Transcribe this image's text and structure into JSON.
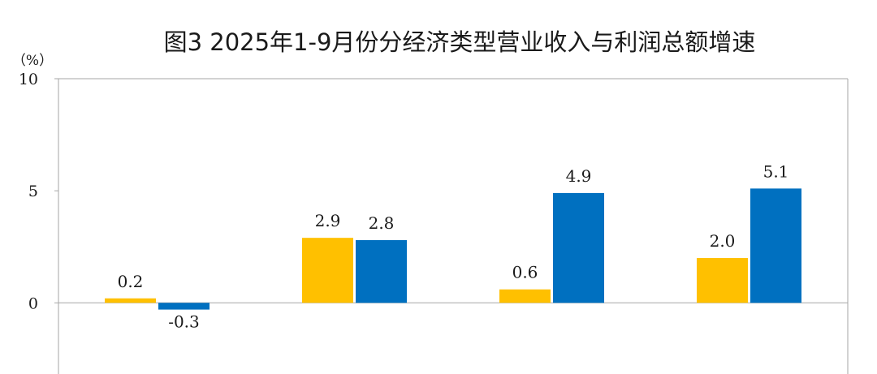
{
  "chart_data": {
    "type": "bar",
    "title": "图3 2025年1-9月份分经济类型营业收入与利润总额增速",
    "ylabel": "（%）",
    "xlabel": "",
    "ylim": [
      -3.5,
      10
    ],
    "yticks": [
      0,
      5,
      10
    ],
    "y_tick_labels": [
      "0",
      "5",
      "10"
    ],
    "grid": false,
    "legend": "none",
    "categories": [
      "",
      "",
      "",
      ""
    ],
    "series": [
      {
        "color": "#FFC000",
        "values": [
          0.2,
          2.9,
          0.6,
          2.0
        ],
        "labels": [
          "0.2",
          "2.9",
          "0.6",
          "2.0"
        ]
      },
      {
        "color": "#0070C0",
        "values": [
          -0.3,
          2.8,
          4.9,
          5.1
        ],
        "labels": [
          "-0.3",
          "2.8",
          "4.9",
          "5.1"
        ]
      }
    ]
  }
}
